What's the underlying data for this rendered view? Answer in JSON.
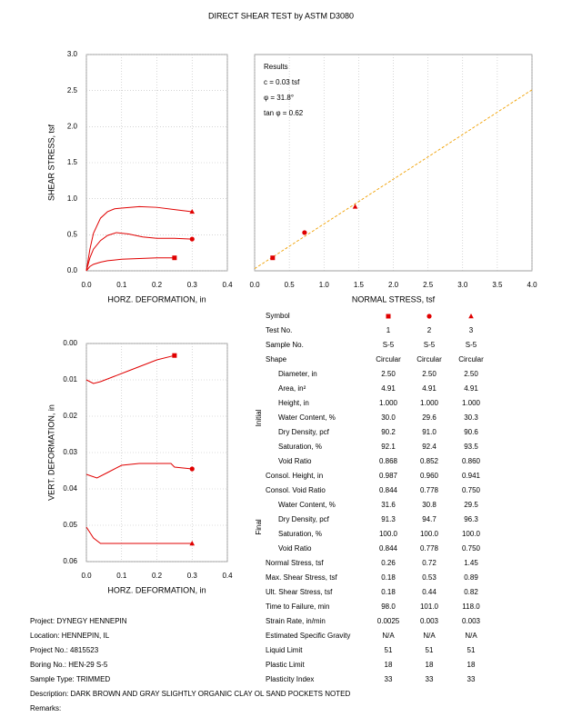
{
  "title": "DIRECT SHEAR TEST by ASTM D3080",
  "chart_data": [
    {
      "type": "line",
      "xlabel": "HORZ. DEFORMATION, in",
      "ylabel": "SHEAR STRESS, tsf",
      "xlim": [
        0,
        0.4
      ],
      "xticks": [
        {
          "value": 0,
          "label": "0.0"
        },
        0.1,
        0.2,
        0.3,
        0.4
      ],
      "ylim": [
        0,
        3
      ],
      "yticks": [
        {
          "value": 0,
          "label": "0.0"
        },
        0.5,
        {
          "value": 1,
          "label": "1.0"
        },
        1.5,
        {
          "value": 2,
          "label": "2.0"
        },
        2.5,
        {
          "value": 3,
          "label": "3.0"
        }
      ],
      "grid": true,
      "series": [
        {
          "marker": "square",
          "color": "#e00000",
          "x": [
            0,
            0.01,
            0.02,
            0.04,
            0.06,
            0.08,
            0.1,
            0.15,
            0.2,
            0.25
          ],
          "values": [
            0,
            0.06,
            0.09,
            0.12,
            0.14,
            0.15,
            0.16,
            0.17,
            0.18,
            0.18
          ]
        },
        {
          "marker": "circle",
          "color": "#e00000",
          "x": [
            0,
            0.01,
            0.02,
            0.04,
            0.06,
            0.085,
            0.12,
            0.16,
            0.2,
            0.25,
            0.3
          ],
          "values": [
            0,
            0.18,
            0.3,
            0.42,
            0.49,
            0.53,
            0.51,
            0.47,
            0.45,
            0.45,
            0.44
          ]
        },
        {
          "marker": "triangle",
          "color": "#e00000",
          "x": [
            0,
            0.01,
            0.02,
            0.04,
            0.06,
            0.08,
            0.1,
            0.15,
            0.2,
            0.25,
            0.3
          ],
          "values": [
            0,
            0.3,
            0.52,
            0.73,
            0.82,
            0.86,
            0.87,
            0.89,
            0.88,
            0.85,
            0.82
          ]
        }
      ]
    },
    {
      "type": "scatter",
      "xlabel": "NORMAL STRESS, tsf",
      "xlim": [
        0,
        4
      ],
      "xticks": [
        {
          "value": 0,
          "label": "0.0"
        },
        0.5,
        {
          "value": 1,
          "label": "1.0"
        },
        1.5,
        {
          "value": 2,
          "label": "2.0"
        },
        2.5,
        {
          "value": 3,
          "label": "3.0"
        },
        3.5,
        {
          "value": 4,
          "label": "4.0"
        }
      ],
      "ylim": [
        0,
        3
      ],
      "grid": true,
      "annotations": [
        "Results",
        "c = 0.03 tsf",
        "φ = 31.8°",
        "tan φ = 0.62"
      ],
      "series": [
        {
          "marker": "square",
          "color": "#e00000",
          "x": [
            0.26
          ],
          "values": [
            0.18
          ]
        },
        {
          "marker": "circle",
          "color": "#e00000",
          "x": [
            0.72
          ],
          "values": [
            0.53
          ]
        },
        {
          "marker": "triangle",
          "color": "#e00000",
          "x": [
            1.45
          ],
          "values": [
            0.89
          ]
        }
      ],
      "fit": {
        "color": "#f0a000",
        "x": [
          0,
          4
        ],
        "values": [
          0.03,
          2.51
        ]
      }
    },
    {
      "type": "line",
      "xlabel": "HORZ. DEFORMATION, in",
      "ylabel": "VERT. DEFORMATION, in",
      "xlim": [
        0,
        0.4
      ],
      "xticks": [
        {
          "value": 0,
          "label": "0.0"
        },
        0.1,
        0.2,
        0.3,
        0.4
      ],
      "ylim": [
        0.06,
        0
      ],
      "yticks": [
        {
          "value": 0,
          "label": "0.00"
        },
        0.01,
        0.02,
        0.03,
        0.04,
        0.05,
        0.06
      ],
      "grid": true,
      "series": [
        {
          "marker": "square",
          "color": "#e00000",
          "x": [
            0,
            0.02,
            0.04,
            0.08,
            0.12,
            0.16,
            0.2,
            0.25
          ],
          "values": [
            0.01,
            0.011,
            0.0105,
            0.009,
            0.0075,
            0.006,
            0.0045,
            0.0033
          ]
        },
        {
          "marker": "circle",
          "color": "#e00000",
          "x": [
            0,
            0.03,
            0.06,
            0.1,
            0.15,
            0.24,
            0.25,
            0.3
          ],
          "values": [
            0.036,
            0.037,
            0.0355,
            0.0335,
            0.033,
            0.033,
            0.034,
            0.0345
          ]
        },
        {
          "marker": "triangle",
          "color": "#e00000",
          "x": [
            0,
            0.02,
            0.04,
            0.1,
            0.2,
            0.3
          ],
          "values": [
            0.0505,
            0.0535,
            0.055,
            0.055,
            0.055,
            0.055
          ]
        }
      ]
    }
  ],
  "table": {
    "symbol_label": "Symbol",
    "top": [
      [
        "Test No.",
        "1",
        "2",
        "3"
      ],
      [
        "Sample No.",
        "S-5",
        "S-5",
        "S-5"
      ],
      [
        "Shape",
        "Circular",
        "Circular",
        "Circular"
      ]
    ],
    "initial": {
      "label": "Initial",
      "rows": [
        [
          "Diameter, in",
          "2.50",
          "2.50",
          "2.50"
        ],
        [
          "Area, in²",
          "4.91",
          "4.91",
          "4.91"
        ],
        [
          "Height, in",
          "1.000",
          "1.000",
          "1.000"
        ],
        [
          "Water Content, %",
          "30.0",
          "29.6",
          "30.3"
        ],
        [
          "Dry Density, pcf",
          "90.2",
          "91.0",
          "90.6"
        ],
        [
          "Saturation, %",
          "92.1",
          "92.4",
          "93.5"
        ],
        [
          "Void Ratio",
          "0.868",
          "0.852",
          "0.860"
        ]
      ]
    },
    "middle": [
      [
        "Consol. Height, in",
        "0.987",
        "0.960",
        "0.941"
      ],
      [
        "Consol. Void Ratio",
        "0.844",
        "0.778",
        "0.750"
      ]
    ],
    "final": {
      "label": "Final",
      "rows": [
        [
          "Water Content, %",
          "31.6",
          "30.8",
          "29.5"
        ],
        [
          "Dry Density, pcf",
          "91.3",
          "94.7",
          "96.3"
        ],
        [
          "Saturation, %",
          "100.0",
          "100.0",
          "100.0"
        ],
        [
          "Void Ratio",
          "0.844",
          "0.778",
          "0.750"
        ]
      ]
    },
    "bottom": [
      [
        "Normal Stress, tsf",
        "0.26",
        "0.72",
        "1.45"
      ],
      [
        "Max. Shear Stress, tsf",
        "0.18",
        "0.53",
        "0.89"
      ],
      [
        "Ult. Shear Stress, tsf",
        "0.18",
        "0.44",
        "0.82"
      ],
      [
        "Time to Failure, min",
        "98.0",
        "101.0",
        "118.0"
      ],
      [
        "Strain Rate, in/min",
        "0.0025",
        "0.003",
        "0.003"
      ],
      [
        "Estimated Specific Gravity",
        "N/A",
        "N/A",
        "N/A"
      ],
      [
        "Liquid Limit",
        "51",
        "51",
        "51"
      ],
      [
        "Plastic Limit",
        "18",
        "18",
        "18"
      ],
      [
        "Plasticity Index",
        "33",
        "33",
        "33"
      ]
    ]
  },
  "info": [
    "Project: DYNEGY HENNEPIN",
    "Location: HENNEPIN, IL",
    "Project No.: 4815523",
    "Boring No.: HEN-29 S-5",
    "Sample Type: TRIMMED",
    "Description: DARK BROWN AND GRAY SLIGHTLY ORGANIC CLAY OL SAND POCKETS NOTED",
    "Remarks:"
  ]
}
